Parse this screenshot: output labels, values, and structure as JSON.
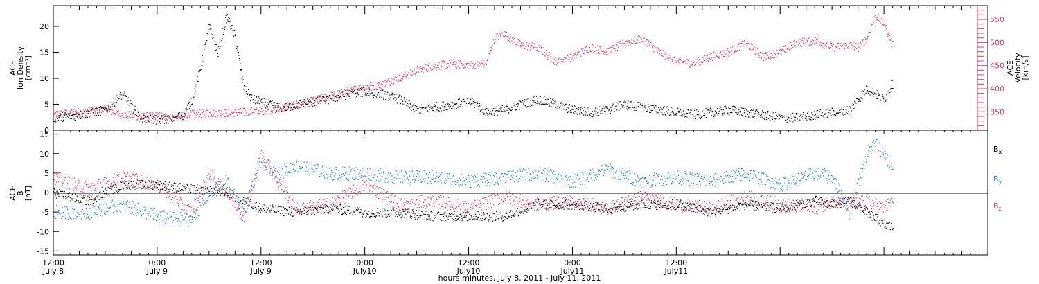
{
  "chart_data": [
    {
      "type": "scatter",
      "panel": "top",
      "left_axis_label": [
        "ACE",
        "Ion Density",
        "[cm⁻³]"
      ],
      "right_axis_label": [
        "ACE",
        "Velocity",
        "[km/s]"
      ],
      "left_ylim": [
        0,
        24
      ],
      "left_yticks": [
        0,
        5,
        10,
        15,
        20
      ],
      "right_ylim": [
        310,
        580
      ],
      "right_yticks": [
        350,
        400,
        450,
        500,
        550
      ],
      "series": [
        {
          "color": "#000000",
          "axis": "left",
          "x": [
            0,
            3,
            6,
            8,
            10,
            12,
            14,
            15,
            16,
            17,
            18,
            19,
            20,
            21,
            22,
            23,
            24,
            25,
            26,
            27,
            28,
            30,
            32,
            34,
            36,
            38,
            40,
            42,
            44,
            46,
            48,
            49,
            50,
            52,
            54,
            56,
            58,
            60,
            62,
            64,
            66,
            68,
            70,
            72,
            74,
            76,
            78,
            80,
            82,
            84,
            86,
            88,
            90,
            92,
            93,
            94,
            95,
            96,
            97
          ],
          "y": [
            2.5,
            3,
            4,
            7,
            2.5,
            2,
            2.5,
            3,
            6,
            12,
            20,
            15,
            22,
            18,
            8,
            6,
            5.5,
            5,
            4.5,
            4.5,
            5,
            5.5,
            6,
            7,
            7.5,
            7,
            6,
            4,
            4.5,
            5,
            5.5,
            5,
            3.5,
            4,
            5,
            6,
            5,
            4,
            3.5,
            4,
            5,
            4.5,
            4,
            3.5,
            3,
            3.5,
            4,
            3.5,
            3,
            2.5,
            2.5,
            3,
            3.5,
            4,
            6,
            8,
            7,
            6,
            9
          ]
        },
        {
          "color": "#e8365f",
          "axis": "right",
          "x": [
            0,
            3,
            6,
            8,
            10,
            12,
            14,
            16,
            18,
            20,
            22,
            24,
            26,
            28,
            30,
            32,
            34,
            36,
            38,
            40,
            42,
            44,
            46,
            48,
            50,
            51,
            52,
            54,
            56,
            58,
            60,
            62,
            64,
            66,
            68,
            70,
            72,
            74,
            76,
            78,
            80,
            82,
            84,
            86,
            88,
            90,
            92,
            93,
            94,
            95,
            96,
            97
          ],
          "y": [
            345,
            350,
            355,
            345,
            340,
            342,
            338,
            345,
            348,
            348,
            350,
            352,
            358,
            365,
            375,
            385,
            395,
            405,
            410,
            425,
            440,
            450,
            455,
            452,
            455,
            510,
            520,
            495,
            490,
            460,
            470,
            490,
            480,
            500,
            510,
            480,
            460,
            455,
            470,
            480,
            500,
            470,
            480,
            500,
            505,
            490,
            495,
            490,
            510,
            560,
            540,
            495
          ]
        }
      ]
    },
    {
      "type": "scatter",
      "panel": "bottom",
      "left_axis_label": [
        "ACE",
        "B",
        "[nT]"
      ],
      "ylim": [
        -16,
        16
      ],
      "yticks": [
        -15,
        -10,
        -5,
        0,
        5,
        10,
        15
      ],
      "series": [
        {
          "name": "Bx",
          "color": "#000000",
          "x": [
            0,
            4,
            8,
            12,
            16,
            20,
            24,
            28,
            32,
            36,
            40,
            44,
            48,
            52,
            56,
            60,
            64,
            68,
            72,
            76,
            80,
            84,
            88,
            90,
            92,
            94,
            96,
            97
          ],
          "y": [
            0,
            -2,
            2,
            2,
            1,
            0,
            -4,
            -5,
            -4,
            -5,
            -5,
            -6,
            -6,
            -6,
            -3,
            -3,
            -4,
            -3,
            -3,
            -5,
            -3,
            -4,
            -2,
            -3,
            -2,
            -5,
            -8,
            -9
          ]
        },
        {
          "name": "By",
          "color": "#1f87e0",
          "x": [
            0,
            4,
            8,
            12,
            16,
            18,
            20,
            22,
            24,
            26,
            28,
            32,
            36,
            40,
            44,
            48,
            52,
            56,
            60,
            64,
            68,
            72,
            76,
            80,
            84,
            88,
            90,
            92,
            94,
            95,
            96,
            97
          ],
          "y": [
            -5,
            -5,
            -3,
            -6,
            -7,
            0,
            3,
            -5,
            8,
            5,
            7,
            5,
            5,
            4,
            4,
            3,
            4,
            5,
            3,
            6,
            3,
            4,
            3,
            5,
            2,
            5,
            4,
            -5,
            10,
            13,
            10,
            6
          ]
        },
        {
          "name": "Bz",
          "color": "#e8365f",
          "x": [
            0,
            4,
            8,
            12,
            16,
            18,
            20,
            22,
            24,
            26,
            28,
            32,
            36,
            40,
            44,
            48,
            52,
            56,
            60,
            64,
            68,
            72,
            76,
            80,
            84,
            88,
            90,
            92,
            94,
            96,
            97
          ],
          "y": [
            4,
            1,
            4,
            2,
            -5,
            5,
            0,
            -6,
            10,
            3,
            -4,
            -3,
            2,
            -3,
            -2,
            -4,
            -1,
            -3,
            -2,
            -4,
            -1,
            -3,
            -4,
            -1,
            -3,
            -4,
            -2,
            -3,
            -2,
            -4,
            -2
          ]
        }
      ],
      "legend": [
        "Bx",
        "By",
        "Bz"
      ]
    }
  ],
  "x_axis": {
    "xlim": [
      0,
      108
    ],
    "major_ticks": [
      {
        "x": 0,
        "time": "12:00",
        "day": "July 8"
      },
      {
        "x": 12,
        "time": "0:00",
        "day": "July 9"
      },
      {
        "x": 24,
        "time": "12:00",
        "day": "July 9"
      },
      {
        "x": 36,
        "time": "0:00",
        "day": "July10"
      },
      {
        "x": 48,
        "time": "12:00",
        "day": "July10"
      },
      {
        "x": 60,
        "time": "0:00",
        "day": "July11"
      },
      {
        "x": 72,
        "time": "12:00",
        "day": "July11"
      }
    ],
    "title": "hours:minutes, July  8, 2011 - July 11, 2011"
  },
  "legend_labels": {
    "bx": {
      "base": "B",
      "sub": "x"
    },
    "by": {
      "base": "B",
      "sub": "y"
    },
    "bz": {
      "base": "B",
      "sub": "z"
    }
  },
  "colors": {
    "red": "#e8365f",
    "blue": "#1f87e0",
    "black": "#000000"
  }
}
